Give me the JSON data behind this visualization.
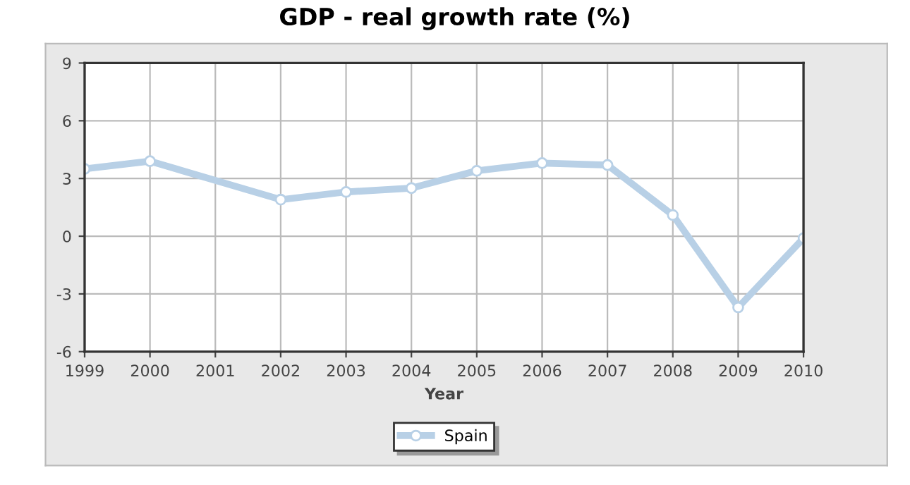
{
  "chart_data": {
    "type": "line",
    "title": "GDP - real growth rate (%)",
    "xlabel": "Year",
    "x": [
      1999,
      2000,
      2002,
      2003,
      2004,
      2005,
      2006,
      2007,
      2008,
      2009,
      2010
    ],
    "series": [
      {
        "name": "Spain",
        "color": "#b8d0e6",
        "values": [
          3.5,
          3.9,
          1.9,
          2.3,
          2.5,
          3.4,
          3.8,
          3.7,
          1.1,
          -3.7,
          -0.1
        ]
      }
    ],
    "xlim": [
      1999,
      2010
    ],
    "xticks": [
      1999,
      2000,
      2001,
      2002,
      2003,
      2004,
      2005,
      2006,
      2007,
      2008,
      2009,
      2010
    ],
    "ylim": [
      -6,
      9
    ],
    "yticks": [
      -6,
      -3,
      0,
      3,
      6,
      9
    ],
    "grid": true,
    "legend": "bottom",
    "marker": "circle",
    "line_style": "solid"
  }
}
